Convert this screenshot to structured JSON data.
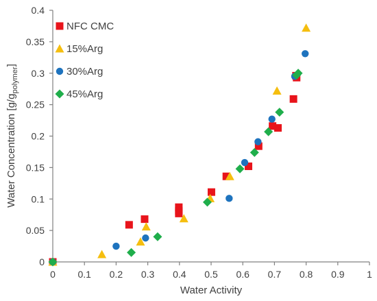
{
  "chart_data": {
    "type": "scatter",
    "xlabel": "Water Activity",
    "ylabel_main": "Water Concentration [g/g",
    "ylabel_sub": "polymer",
    "ylabel_end": "]",
    "xlim": [
      0,
      1
    ],
    "ylim": [
      0,
      0.4
    ],
    "xticks": [
      "0",
      "0.1",
      "0.2",
      "0.3",
      "0.4",
      "0.5",
      "0.6",
      "0.7",
      "0.8",
      "0.9",
      "1"
    ],
    "yticks": [
      "0",
      "0.05",
      "0.1",
      "0.15",
      "0.2",
      "0.25",
      "0.3",
      "0.35",
      "0.4"
    ],
    "grid": false,
    "legend_position": "top-left",
    "series": [
      {
        "name": "NFC CMC",
        "marker": "square",
        "color": "#e8141b",
        "points": [
          [
            0,
            0
          ],
          [
            0.241,
            0.059
          ],
          [
            0.29,
            0.068
          ],
          [
            0.398,
            0.087
          ],
          [
            0.398,
            0.081
          ],
          [
            0.398,
            0.077
          ],
          [
            0.501,
            0.111
          ],
          [
            0.548,
            0.136
          ],
          [
            0.618,
            0.152
          ],
          [
            0.65,
            0.184
          ],
          [
            0.694,
            0.216
          ],
          [
            0.711,
            0.213
          ],
          [
            0.76,
            0.259
          ],
          [
            0.77,
            0.293
          ],
          [
            0.768,
            0.296
          ]
        ]
      },
      {
        "name": "15%Arg",
        "marker": "triangle",
        "color": "#f5be0f",
        "points": [
          [
            0,
            0
          ],
          [
            0.155,
            0.012
          ],
          [
            0.277,
            0.032
          ],
          [
            0.295,
            0.056
          ],
          [
            0.414,
            0.069
          ],
          [
            0.497,
            0.101
          ],
          [
            0.559,
            0.136
          ],
          [
            0.708,
            0.272
          ],
          [
            0.8,
            0.372
          ]
        ]
      },
      {
        "name": "30%Arg",
        "marker": "circle",
        "color": "#1e73be",
        "points": [
          [
            0,
            0
          ],
          [
            0.2,
            0.025
          ],
          [
            0.293,
            0.038
          ],
          [
            0.557,
            0.101
          ],
          [
            0.606,
            0.158
          ],
          [
            0.648,
            0.191
          ],
          [
            0.692,
            0.227
          ],
          [
            0.764,
            0.295
          ],
          [
            0.797,
            0.331
          ]
        ]
      },
      {
        "name": "45%Arg",
        "marker": "diamond",
        "color": "#1fae4b",
        "points": [
          [
            0,
            0
          ],
          [
            0.248,
            0.015
          ],
          [
            0.331,
            0.04
          ],
          [
            0.488,
            0.095
          ],
          [
            0.591,
            0.148
          ],
          [
            0.637,
            0.174
          ],
          [
            0.681,
            0.207
          ],
          [
            0.716,
            0.238
          ],
          [
            0.77,
            0.297
          ],
          [
            0.775,
            0.3
          ]
        ]
      }
    ]
  }
}
